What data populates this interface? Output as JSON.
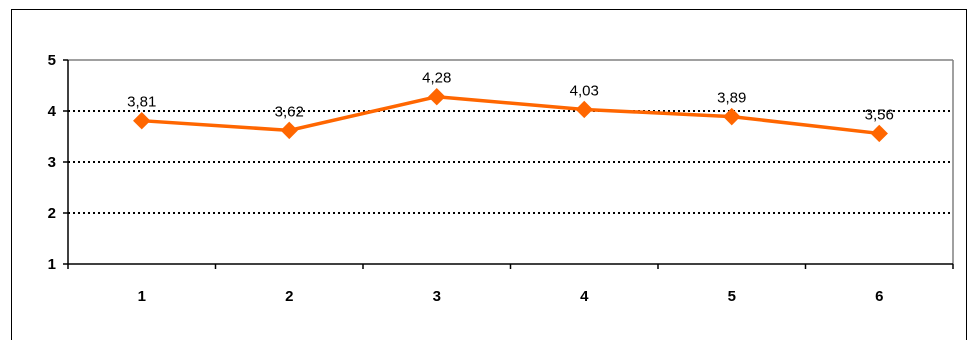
{
  "chart_data": {
    "type": "line",
    "title": "",
    "xlabel": "",
    "ylabel": "",
    "categories": [
      "1",
      "2",
      "3",
      "4",
      "5",
      "6"
    ],
    "series": [
      {
        "values": [
          3.81,
          3.62,
          4.28,
          4.03,
          3.89,
          3.56
        ],
        "data_labels": [
          "3,81",
          "3,62",
          "4,28",
          "4,03",
          "3,89",
          "3,56"
        ],
        "color": "#FF6600",
        "marker": "diamond"
      }
    ],
    "ylim": [
      1,
      5
    ],
    "yticks": [
      "1",
      "2",
      "3",
      "4",
      "5"
    ],
    "grid": "dotted horizontal",
    "legend": "none",
    "plot_border_color": "#808080"
  }
}
